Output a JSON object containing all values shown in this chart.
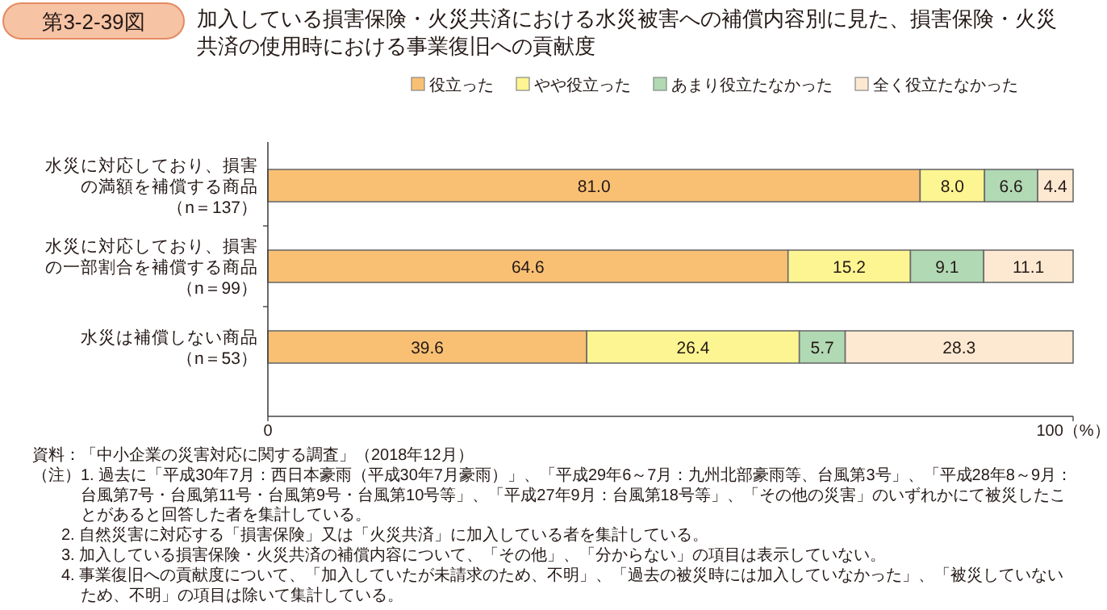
{
  "chart_data": {
    "type": "bar",
    "orientation": "horizontal",
    "stacked": true,
    "title": "加入している損害保険・火災共済における水災被害への補償内容別に見た、損害保険・火災共済の使用時における事業復旧への貢献度",
    "categories": [
      "水災に対応しており、損害の満額を補償する商品（n＝137）",
      "水災に対応しており、損害の一部割合を補償する商品（n＝99）",
      "水災は補償しない商品（n＝53）"
    ],
    "series": [
      {
        "name": "役立った",
        "color": "#f9c074",
        "values": [
          81.0,
          64.6,
          39.6
        ],
        "value_labels": [
          "81.0",
          "64.6",
          "39.6"
        ]
      },
      {
        "name": "やや役立った",
        "color": "#fdf591",
        "values": [
          8.0,
          15.2,
          26.4
        ],
        "value_labels": [
          "8.0",
          "15.2",
          "26.4"
        ]
      },
      {
        "name": "あまり役立たなかった",
        "color": "#b0d9b4",
        "values": [
          6.6,
          9.1,
          5.7
        ],
        "value_labels": [
          "6.6",
          "9.1",
          "5.7"
        ]
      },
      {
        "name": "全く役立たなかった",
        "color": "#fde9d2",
        "values": [
          4.4,
          11.1,
          28.3
        ],
        "value_labels": [
          "4.4",
          "11.1",
          "28.3"
        ]
      }
    ],
    "xlim": [
      0,
      100
    ],
    "xticks": [
      0,
      {
        "value": 100,
        "label": "100（%）"
      }
    ],
    "legend": "top",
    "annotations": [
      "第3-2-39図",
      "資料：「中小企業の災害対応に関する調査」（2018年12月）",
      "（注）1. 過去に「平成30年7月：西日本豪雨（平成30年7月豪雨）」、「平成29年6～7月：九州北部豪雨等、台風第3号」、「平成28年8～9月：台風第7号・台風第11号・台風第9号・台風第10号等」、「平成27年9月：台風第18号等」、「その他の災害」のいずれかにて被災したことがあると回答した者を集計している。",
      "2. 自然災害に対応する「損害保険」又は「火災共済」に加入している者を集計している。",
      "3. 加入している損害保険・火災共済の補償内容について、「その他」、「分からない」の項目は表示していない。",
      "4. 事業復旧への貢献度について、「加入していたが未請求のため、不明」、「過去の被災時には加入していなかった」、「被災していないため、不明」の項目は除いて集計している。"
    ]
  }
}
